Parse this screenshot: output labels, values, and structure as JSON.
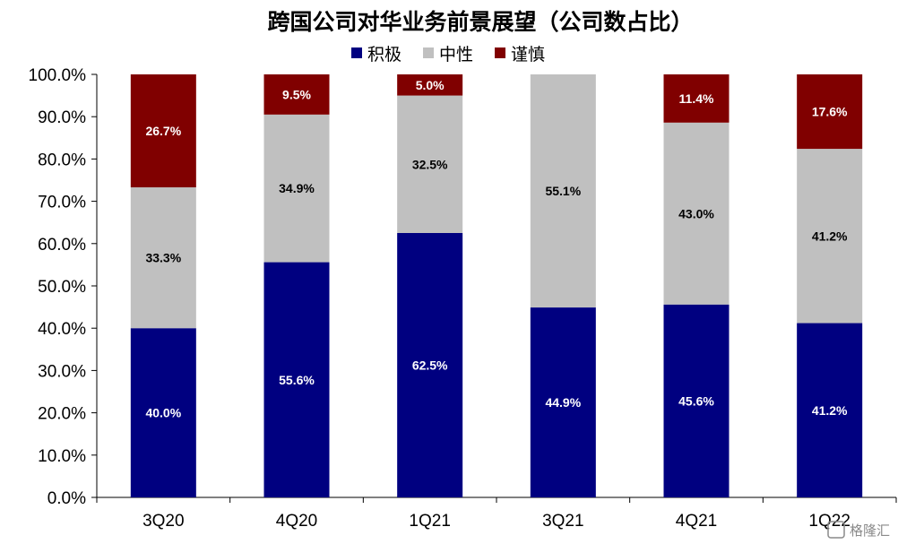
{
  "chart_data": {
    "type": "bar",
    "stacked": true,
    "title": "跨国公司对华业务前景展望（公司数占比）",
    "categories": [
      "3Q20",
      "4Q20",
      "1Q21",
      "3Q21",
      "4Q21",
      "1Q22"
    ],
    "series": [
      {
        "name": "积极",
        "color": "#000080",
        "label_color": "#ffffff",
        "values": [
          40.0,
          55.6,
          62.5,
          44.9,
          45.6,
          41.2
        ],
        "labels": [
          "40.0%",
          "55.6%",
          "62.5%",
          "44.9%",
          "45.6%",
          "41.2%"
        ]
      },
      {
        "name": "中性",
        "color": "#c0c0c0",
        "label_color": "#000000",
        "values": [
          33.3,
          34.9,
          32.5,
          55.1,
          43.0,
          41.2
        ],
        "labels": [
          "33.3%",
          "34.9%",
          "32.5%",
          "55.1%",
          "43.0%",
          "41.2%"
        ]
      },
      {
        "name": "谨慎",
        "color": "#800000",
        "label_color": "#ffffff",
        "values": [
          26.7,
          9.5,
          5.0,
          0,
          11.4,
          17.6
        ],
        "labels": [
          "26.7%",
          "9.5%",
          "5.0%",
          "",
          "11.4%",
          "17.6%"
        ]
      }
    ],
    "ylim": [
      0,
      100
    ],
    "yticks": [
      "0.0%",
      "10.0%",
      "20.0%",
      "30.0%",
      "40.0%",
      "50.0%",
      "60.0%",
      "70.0%",
      "80.0%",
      "90.0%",
      "100.0%"
    ],
    "grid": false,
    "legend_position": "top-center"
  },
  "watermark": {
    "text": "格隆汇"
  }
}
